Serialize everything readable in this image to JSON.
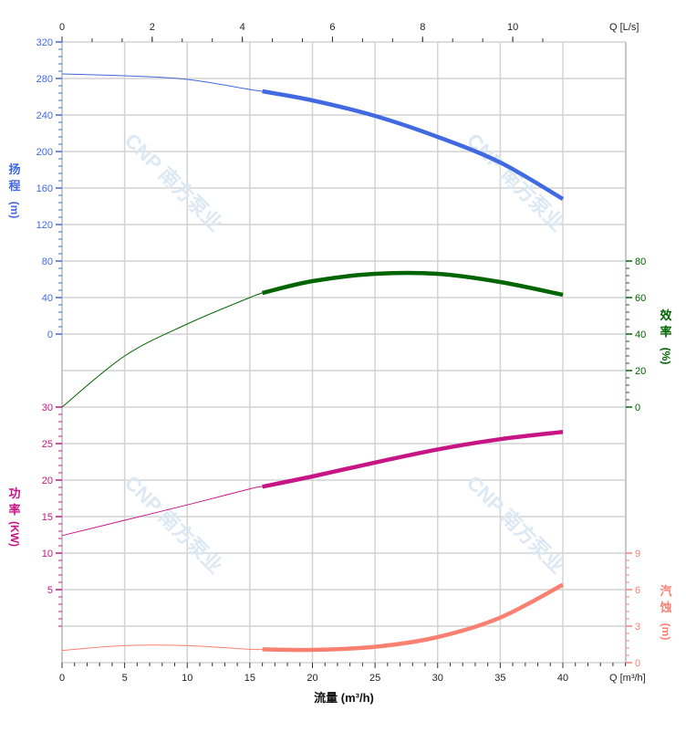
{
  "chart_data": {
    "type": "line",
    "x": [
      0,
      5,
      10,
      15,
      16,
      20,
      25,
      30,
      35,
      40
    ],
    "x_axis": {
      "label": "流量 (m³/h)",
      "unit_label": "Q [m³/h]",
      "range": [
        0,
        45
      ],
      "ticks": [
        0,
        5,
        10,
        15,
        20,
        25,
        30,
        35,
        40
      ]
    },
    "x2_axis": {
      "unit_label": "Q [L/s]",
      "ticks": [
        0,
        2,
        4,
        6,
        8,
        10
      ]
    },
    "operating_range": [
      16,
      40
    ],
    "series": [
      {
        "key": "head",
        "axis_label": [
          "扬",
          "程",
          "(m)"
        ],
        "color": "#4169E1",
        "values": [
          285,
          283,
          279,
          268,
          266,
          256,
          239,
          216,
          188,
          148
        ],
        "ylim": [
          0,
          320
        ],
        "ticks": [
          0,
          40,
          80,
          120,
          160,
          200,
          240,
          280,
          320
        ],
        "side": "left"
      },
      {
        "key": "efficiency",
        "axis_label": [
          "效",
          "率",
          "(%)"
        ],
        "color": "#006400",
        "values": [
          0,
          28,
          45.5,
          60,
          62.5,
          69,
          73,
          73,
          68.5,
          61.5
        ],
        "ylim": [
          0,
          80
        ],
        "ticks": [
          0,
          20,
          40,
          60,
          80
        ],
        "side": "right"
      },
      {
        "key": "power",
        "axis_label": [
          "功",
          "率",
          "(KW)"
        ],
        "color": "#C71585",
        "values": [
          12.4,
          14.5,
          16.6,
          18.8,
          19.1,
          20.5,
          22.4,
          24.2,
          25.6,
          26.6
        ],
        "ylim": [
          0,
          30
        ],
        "ticks": [
          5,
          10,
          15,
          20,
          25,
          30
        ],
        "side": "left"
      },
      {
        "key": "npsh",
        "axis_label": [
          "汽",
          "蚀",
          "(m)"
        ],
        "color": "#FA8072",
        "values": [
          1.0,
          1.4,
          1.4,
          1.1,
          1.1,
          1.05,
          1.3,
          2.1,
          3.7,
          6.4
        ],
        "ylim": [
          0,
          9
        ],
        "ticks": [
          0,
          3,
          6,
          9
        ],
        "side": "right"
      }
    ],
    "grid": true,
    "watermark": "CNP 南方泵业"
  }
}
